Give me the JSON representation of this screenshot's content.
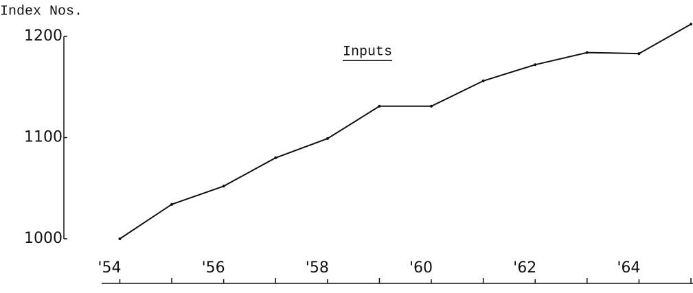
{
  "chart_data": {
    "type": "line",
    "title": "Inputs",
    "y_label": "Index Nos.",
    "x": [
      1954,
      1955,
      1956,
      1957,
      1958,
      1959,
      1960,
      1961,
      1962,
      1963,
      1964,
      1965
    ],
    "series": [
      {
        "color": "#111111",
        "values": [
          1000,
          1034,
          1052,
          1080,
          1099,
          1131,
          1131,
          1156,
          1172,
          1184,
          1183,
          1212
        ]
      }
    ],
    "xlim": [
      1953.65,
      1965.04
    ],
    "xticks": [
      {
        "value": 1954,
        "label": "'54"
      },
      {
        "value": 1956,
        "label": "'56"
      },
      {
        "value": 1958,
        "label": "'58"
      },
      {
        "value": 1960,
        "label": "'60"
      },
      {
        "value": 1962,
        "label": "'62"
      },
      {
        "value": 1964,
        "label": "'64"
      }
    ],
    "xminorticks": [
      1955,
      1957,
      1959,
      1961,
      1963,
      1965
    ],
    "ylim": [
      1000,
      1200
    ],
    "yticks": [
      1000,
      1100,
      1200
    ],
    "grid": false
  }
}
